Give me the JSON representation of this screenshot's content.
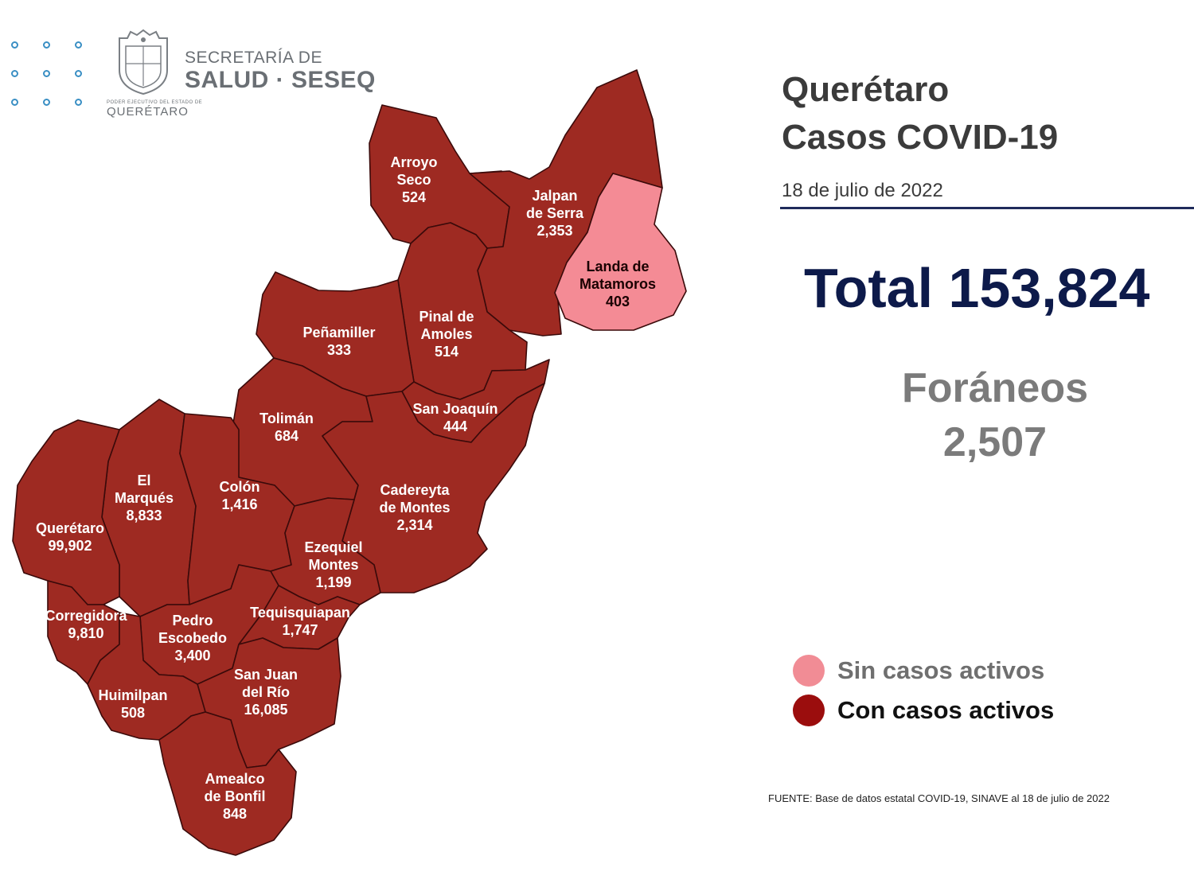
{
  "header": {
    "logo_line1": "SECRETARÍA DE",
    "logo_line2": "SALUD · SESEQ",
    "crest_subtext": "PODER EJECUTIVO DEL ESTADO DE",
    "crest_state": "QUERÉTARO"
  },
  "title": {
    "line1": "Querétaro",
    "line2": "Casos COVID-19",
    "date": "18 de julio  de 2022"
  },
  "summary": {
    "total_text": "Total 153,824",
    "foraneos_label": "Foráneos",
    "foraneos_value": "2,507"
  },
  "legend": {
    "inactive_label": "Sin casos activos",
    "active_label": "Con casos activos",
    "inactive_color": "#f48b95",
    "active_color": "#9e2a22"
  },
  "source": "FUENTE: Base de datos estatal  COVID-19,  SINAVE  al 18 de julio de 2022",
  "municipalities": {
    "arroyo_seco": {
      "name_lines": [
        "Arroyo",
        "Seco"
      ],
      "cases": "524",
      "active": true
    },
    "jalpan": {
      "name_lines": [
        "Jalpan",
        "de Serra"
      ],
      "cases": "2,353",
      "active": true
    },
    "landa": {
      "name_lines": [
        "Landa de",
        "Matamoros"
      ],
      "cases": "403",
      "active": false
    },
    "pinal": {
      "name_lines": [
        "Pinal de",
        "Amoles"
      ],
      "cases": "514",
      "active": true
    },
    "penamiller": {
      "name_lines": [
        "Peñamiller"
      ],
      "cases": "333",
      "active": true
    },
    "san_joaquin": {
      "name_lines": [
        "San Joaquín"
      ],
      "cases": "444",
      "active": true
    },
    "toliman": {
      "name_lines": [
        "Tolimán"
      ],
      "cases": "684",
      "active": true
    },
    "cadereyta": {
      "name_lines": [
        "Cadereyta",
        "de Montes"
      ],
      "cases": "2,314",
      "active": true
    },
    "el_marques": {
      "name_lines": [
        "El",
        "Marqués"
      ],
      "cases": "8,833",
      "active": true
    },
    "colon": {
      "name_lines": [
        "Colón"
      ],
      "cases": "1,416",
      "active": true
    },
    "queretaro": {
      "name_lines": [
        "Querétaro"
      ],
      "cases": "99,902",
      "active": true
    },
    "ezequiel": {
      "name_lines": [
        "Ezequiel",
        "Montes"
      ],
      "cases": "1,199",
      "active": true
    },
    "corregidora": {
      "name_lines": [
        "Corregidora"
      ],
      "cases": "9,810",
      "active": true
    },
    "pedro_escobedo": {
      "name_lines": [
        "Pedro",
        "Escobedo"
      ],
      "cases": "3,400",
      "active": true
    },
    "tequisquiapan": {
      "name_lines": [
        "Tequisquiapan"
      ],
      "cases": "1,747",
      "active": true
    },
    "san_juan": {
      "name_lines": [
        "San Juan",
        "del Río"
      ],
      "cases": "16,085",
      "active": true
    },
    "huimilpan": {
      "name_lines": [
        "Huimilpan"
      ],
      "cases": "508",
      "active": true
    },
    "amealco": {
      "name_lines": [
        "Amealco",
        "de Bonfil"
      ],
      "cases": "848",
      "active": true
    }
  }
}
